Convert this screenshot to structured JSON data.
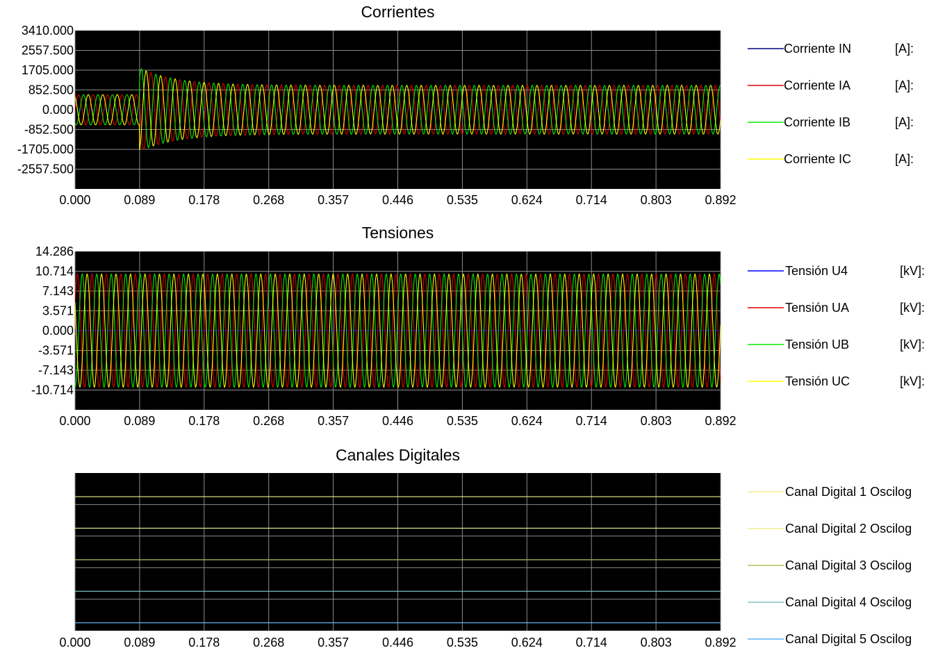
{
  "colors": {
    "plot_background": "#000000",
    "grid": "#8c8c8c",
    "blue": "#0000ff",
    "navy": "#000080",
    "red": "#e00000",
    "green": "#00ee00",
    "yellow": "#ffff00",
    "light_yellow": "#f0f090",
    "olive": "#b0c060",
    "green_light": "#90e090",
    "teal": "#80c0c0",
    "sky": "#60b0f0"
  },
  "chart_data": [
    {
      "type": "line",
      "title": "Corrientes",
      "xlim": [
        0.0,
        0.892
      ],
      "ylim": [
        -3410.0,
        3410.0
      ],
      "x_ticks": [
        "0.000",
        "0.089",
        "0.178",
        "0.268",
        "0.357",
        "0.446",
        "0.535",
        "0.624",
        "0.714",
        "0.803",
        "0.892"
      ],
      "y_ticks": [
        "3410.000",
        "2557.500",
        "1705.000",
        "852.500",
        "0.000",
        "-852.500",
        "-1705.000",
        "-2557.500"
      ],
      "grid": true,
      "legend_position": "right",
      "signal": {
        "frequency_hz": 50,
        "fault_time": 0.089,
        "pre_fault_amplitude": 650,
        "post_fault_amplitude": 1050,
        "peak_amplitude": 1800
      },
      "series": [
        {
          "name": "Corriente IN",
          "unit": "[A]:",
          "color": "navy",
          "phase_deg": 0,
          "amplitude_scale": 0
        },
        {
          "name": "Corriente IA",
          "unit": "[A]:",
          "color": "red",
          "phase_deg": 0,
          "amplitude_scale": 1
        },
        {
          "name": "Corriente IB",
          "unit": "[A]:",
          "color": "green",
          "phase_deg": -120,
          "amplitude_scale": 1
        },
        {
          "name": "Corriente IC",
          "unit": "[A]:",
          "color": "yellow",
          "phase_deg": 120,
          "amplitude_scale": 1
        }
      ]
    },
    {
      "type": "line",
      "title": "Tensiones",
      "xlim": [
        0.0,
        0.892
      ],
      "ylim": [
        -14.286,
        14.286
      ],
      "x_ticks": [
        "0.000",
        "0.089",
        "0.178",
        "0.268",
        "0.357",
        "0.446",
        "0.535",
        "0.624",
        "0.714",
        "0.803",
        "0.892"
      ],
      "y_ticks": [
        "14.286",
        "10.714",
        "7.143",
        "3.571",
        "0.000",
        "-3.571",
        "-7.143",
        "-10.714"
      ],
      "grid": true,
      "legend_position": "right",
      "signal": {
        "frequency_hz": 50,
        "amplitude": 10.2
      },
      "series": [
        {
          "name": "Tensión U4",
          "unit": "[kV]:",
          "color": "blue",
          "phase_deg": 0,
          "amplitude_scale": 0
        },
        {
          "name": "Tensión UA",
          "unit": "[kV]:",
          "color": "red",
          "phase_deg": 30,
          "amplitude_scale": 1
        },
        {
          "name": "Tensión UB",
          "unit": "[kV]:",
          "color": "green",
          "phase_deg": -90,
          "amplitude_scale": 1
        },
        {
          "name": "Tensión UC",
          "unit": "[kV]:",
          "color": "yellow",
          "phase_deg": 150,
          "amplitude_scale": 1
        }
      ]
    },
    {
      "type": "line",
      "title": "Canales Digitales",
      "xlim": [
        0.0,
        0.892
      ],
      "x_ticks": [
        "0.000",
        "0.089",
        "0.178",
        "0.268",
        "0.357",
        "0.446",
        "0.535",
        "0.624",
        "0.714",
        "0.803",
        "0.892"
      ],
      "grid": true,
      "legend_position": "right",
      "series": [
        {
          "name": "Canal Digital 1 Oscilog",
          "color": "light_yellow",
          "value": 0
        },
        {
          "name": "Canal Digital 2 Oscilog",
          "color": "light_yellow",
          "value": 0
        },
        {
          "name": "Canal Digital 3 Oscilog",
          "color": "olive",
          "value": 0
        },
        {
          "name": "Canal Digital 4 Oscilog",
          "color": "teal",
          "value": 0
        },
        {
          "name": "Canal Digital 5 Oscilog",
          "color": "sky",
          "value": 0
        }
      ]
    }
  ]
}
